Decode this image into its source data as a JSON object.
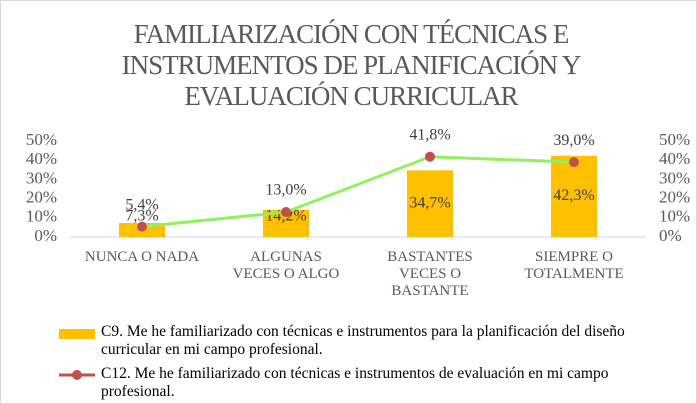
{
  "chart_data": {
    "type": "bar_line",
    "title": "FAMILIARIZACIÓN CON TÉCNICAS E INSTRUMENTOS DE PLANIFICACIÓN Y EVALUACIÓN CURRICULAR",
    "categories": [
      "NUNCA O NADA",
      "ALGUNAS VECES O ALGO",
      "BASTANTES VECES O BASTANTE",
      "SIEMPRE O TOTALMENTE"
    ],
    "series": [
      {
        "name": "C9. Me he familiarizado con técnicas e instrumentos para la planificación del diseño curricular en mi campo profesional.",
        "type": "bar",
        "color": "#ffc000",
        "axis": "y",
        "values": [
          7.3,
          14.2,
          34.7,
          42.3
        ],
        "value_labels": [
          "7,3%",
          "14,2%",
          "34,7%",
          "42,3%"
        ]
      },
      {
        "name": "C12. Me he familiarizado con técnicas e instrumentos de evaluación en mi campo profesional.",
        "type": "line",
        "color": "#92f062",
        "marker_color": "#c0504d",
        "axis": "y2",
        "values": [
          5.4,
          13.0,
          41.8,
          39.0
        ],
        "value_labels": [
          "5,4%",
          "13,0%",
          "41,8%",
          "39,0%"
        ]
      }
    ],
    "ylim": [
      0,
      50
    ],
    "yticks": [
      {
        "value": 0,
        "label": "0%"
      },
      {
        "value": 10,
        "label": "10%"
      },
      {
        "value": 20,
        "label": "20%"
      },
      {
        "value": 30,
        "label": "30%"
      },
      {
        "value": 40,
        "label": "40%"
      },
      {
        "value": 50,
        "label": "50%"
      }
    ],
    "y2lim": [
      0,
      50
    ],
    "y2ticks": [
      {
        "value": 0,
        "label": "0%"
      },
      {
        "value": 10,
        "label": "10%"
      },
      {
        "value": 20,
        "label": "20%"
      },
      {
        "value": 30,
        "label": "30%"
      },
      {
        "value": 40,
        "label": "40%"
      },
      {
        "value": 50,
        "label": "50%"
      }
    ],
    "legend": "bottom"
  }
}
